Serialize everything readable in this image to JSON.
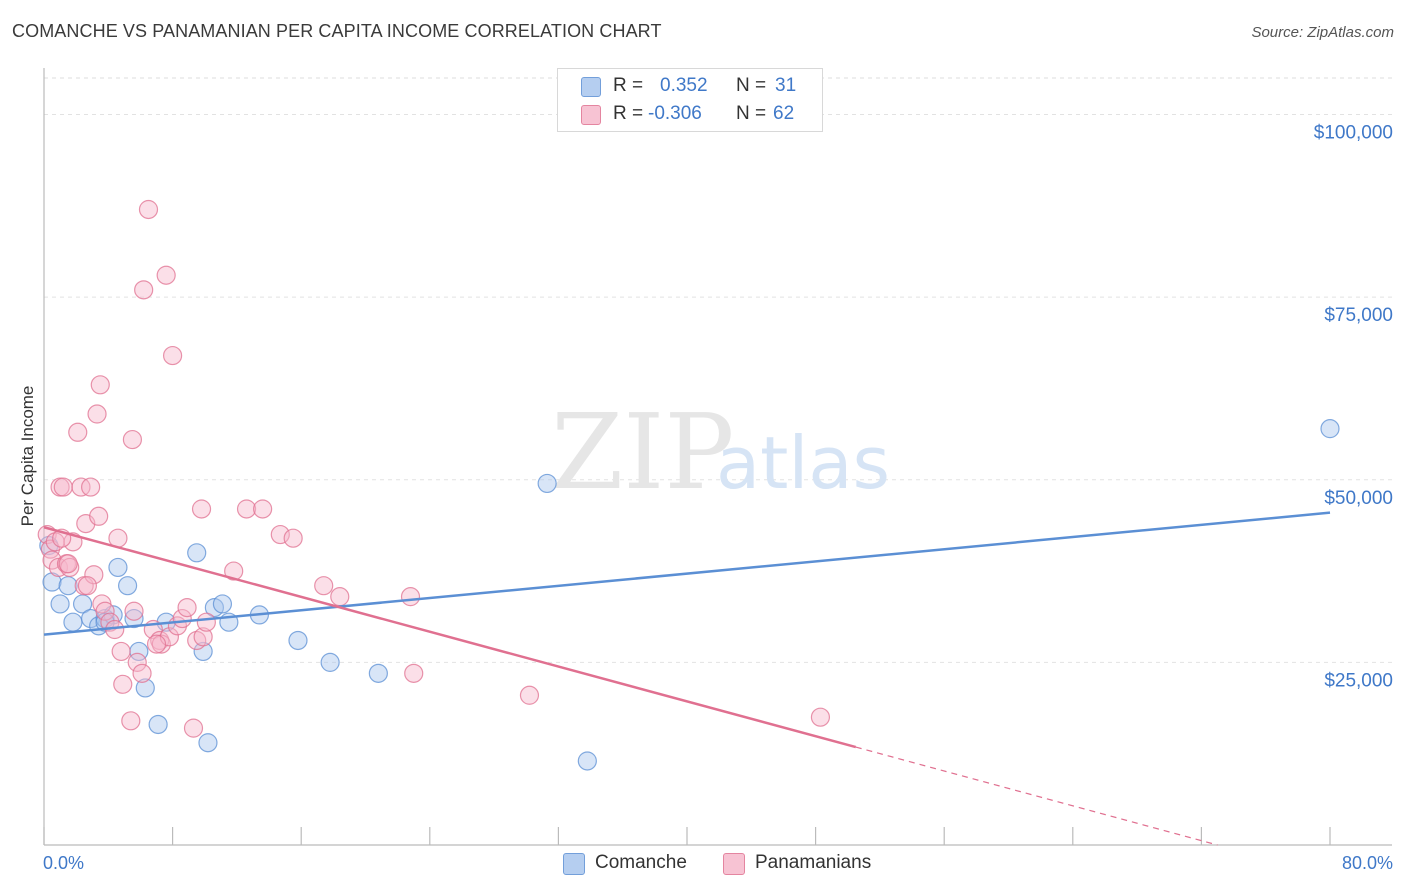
{
  "chart_data": {
    "type": "scatter",
    "title": "COMANCHE VS PANAMANIAN PER CAPITA INCOME CORRELATION CHART",
    "source": "Source: ZipAtlas.com",
    "ylabel": "Per Capita Income",
    "xlim": [
      0,
      80
    ],
    "ylim": [
      0,
      105000
    ],
    "x_tick_labels": {
      "left": "0.0%",
      "right": "80.0%"
    },
    "y_ticks": [
      {
        "value": 25000,
        "label": "$25,000"
      },
      {
        "value": 50000,
        "label": "$50,000"
      },
      {
        "value": 75000,
        "label": "$75,000"
      },
      {
        "value": 100000,
        "label": "$100,000"
      }
    ],
    "grid": true,
    "legend_position": "top-center",
    "watermark": {
      "part1": "ZIP",
      "part2": "atlas"
    },
    "series": [
      {
        "name": "Comanche",
        "color": "#5b8fd4",
        "fill": "#a9c6ee",
        "stats": {
          "r_label": "R =",
          "r": "0.352",
          "n_label": "N =",
          "n": "31"
        },
        "trend": {
          "x0": 0,
          "y0": 28800,
          "x1": 80,
          "y1": 45500,
          "dash_from": null
        },
        "points": [
          [
            0.3,
            41000
          ],
          [
            0.5,
            36000
          ],
          [
            1.0,
            33000
          ],
          [
            1.5,
            35500
          ],
          [
            1.8,
            30500
          ],
          [
            2.4,
            33000
          ],
          [
            2.9,
            31000
          ],
          [
            3.4,
            30000
          ],
          [
            3.8,
            31000
          ],
          [
            4.3,
            31500
          ],
          [
            4.6,
            38000
          ],
          [
            5.2,
            35500
          ],
          [
            5.6,
            31000
          ],
          [
            5.9,
            26500
          ],
          [
            6.3,
            21500
          ],
          [
            7.1,
            16500
          ],
          [
            7.6,
            30500
          ],
          [
            9.5,
            40000
          ],
          [
            9.9,
            26500
          ],
          [
            10.2,
            14000
          ],
          [
            10.6,
            32500
          ],
          [
            11.1,
            33000
          ],
          [
            11.5,
            30500
          ],
          [
            13.4,
            31500
          ],
          [
            15.8,
            28000
          ],
          [
            17.8,
            25000
          ],
          [
            20.8,
            23500
          ],
          [
            31.3,
            49500
          ],
          [
            33.8,
            11500
          ],
          [
            80.0,
            57000
          ],
          [
            3.8,
            30500
          ]
        ]
      },
      {
        "name": "Panamanians",
        "color": "#e07090",
        "fill": "#f6b9cc",
        "stats": {
          "r_label": "R =",
          "r": "-0.306",
          "n_label": "N =",
          "n": "62"
        },
        "trend": {
          "x0": 0,
          "y0": 43500,
          "x1": 73,
          "y1": 0,
          "dash_from": 50.5
        },
        "points": [
          [
            0.2,
            42500
          ],
          [
            0.4,
            40500
          ],
          [
            0.5,
            39000
          ],
          [
            0.7,
            41500
          ],
          [
            0.9,
            38000
          ],
          [
            1.0,
            49000
          ],
          [
            1.2,
            49000
          ],
          [
            1.4,
            38500
          ],
          [
            1.6,
            38000
          ],
          [
            1.8,
            41500
          ],
          [
            2.1,
            56500
          ],
          [
            2.3,
            49000
          ],
          [
            2.5,
            35500
          ],
          [
            2.6,
            44000
          ],
          [
            2.9,
            49000
          ],
          [
            3.1,
            37000
          ],
          [
            3.3,
            59000
          ],
          [
            3.4,
            45000
          ],
          [
            3.5,
            63000
          ],
          [
            3.6,
            33000
          ],
          [
            3.8,
            32000
          ],
          [
            4.1,
            30500
          ],
          [
            4.4,
            29500
          ],
          [
            4.6,
            42000
          ],
          [
            4.8,
            26500
          ],
          [
            4.9,
            22000
          ],
          [
            5.4,
            17000
          ],
          [
            5.5,
            55500
          ],
          [
            5.6,
            32000
          ],
          [
            5.8,
            25000
          ],
          [
            6.1,
            23500
          ],
          [
            6.2,
            76000
          ],
          [
            6.5,
            87000
          ],
          [
            6.8,
            29500
          ],
          [
            7.2,
            28000
          ],
          [
            7.3,
            27500
          ],
          [
            7.6,
            78000
          ],
          [
            7.8,
            28500
          ],
          [
            8.0,
            67000
          ],
          [
            8.3,
            30000
          ],
          [
            8.6,
            31000
          ],
          [
            8.9,
            32500
          ],
          [
            9.3,
            16000
          ],
          [
            9.5,
            28000
          ],
          [
            9.8,
            46000
          ],
          [
            9.9,
            28500
          ],
          [
            10.1,
            30500
          ],
          [
            11.8,
            37500
          ],
          [
            12.6,
            46000
          ],
          [
            13.6,
            46000
          ],
          [
            14.7,
            42500
          ],
          [
            15.5,
            42000
          ],
          [
            17.4,
            35500
          ],
          [
            18.4,
            34000
          ],
          [
            22.8,
            34000
          ],
          [
            23.0,
            23500
          ],
          [
            30.2,
            20500
          ],
          [
            48.3,
            17500
          ],
          [
            1.1,
            42000
          ],
          [
            1.5,
            38500
          ],
          [
            2.7,
            35500
          ],
          [
            7.0,
            27500
          ]
        ]
      }
    ]
  }
}
